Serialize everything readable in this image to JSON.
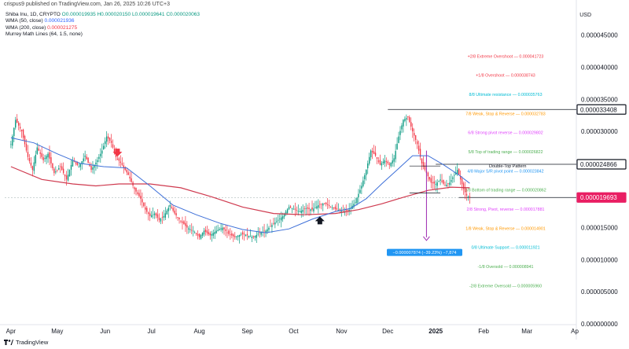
{
  "header": {
    "publisher_line": "crispus9 published on TradingView.com, Jan 26, 2025 10:26 UTC+3"
  },
  "legend": {
    "symbol": "Shiba Inu, 1D, CRYPTO",
    "ohlc": "O0.000019935 H0.000020150 L0.000019641 C0.000020063",
    "wma50_label": "WMA (50, close)",
    "wma50_value": "0.000021936",
    "wma200_label": "WMA (200, close)",
    "wma200_value": "0.000021275",
    "murrey_label": "Murrey Math Lines (64, 1.5, none)"
  },
  "currency": "USD",
  "footer": {
    "brand": "TradingView"
  },
  "colors": {
    "up": "#089981",
    "down": "#f23645",
    "wma50": "#3d6fd8",
    "wma200": "#cf3a4f",
    "price_badge": "#e91e63",
    "measure": "#9c27b0",
    "measure_box": "#2196f3"
  },
  "chart_data": {
    "type": "candlestick",
    "y_ticks": [
      "0.000045000",
      "0.000040000",
      "0.000035000",
      "0.000030000",
      "0.000015000",
      "0.000010000",
      "0.000005000",
      "0.000000000"
    ],
    "y_tick_values": [
      4.5e-05,
      4e-05,
      3.5e-05,
      3e-05,
      1.5e-05,
      1e-05,
      5e-06,
      0.0
    ],
    "ylim": [
      0.0,
      4.9e-05
    ],
    "x_ticks": [
      "Apr",
      "May",
      "Jun",
      "Jul",
      "Aug",
      "Sep",
      "Oct",
      "Nov",
      "Dec",
      "2025",
      "Feb",
      "Mar",
      "Ap"
    ],
    "x_tick_days": [
      0,
      30,
      61,
      91,
      122,
      153,
      183,
      214,
      244,
      275,
      306,
      334,
      365
    ],
    "xlim_days": [
      -4,
      366
    ],
    "price_labels": [
      {
        "text": "0.000033408",
        "value": 3.3408e-05,
        "style": "black"
      },
      {
        "text": "0.000024866",
        "value": 2.4866e-05,
        "style": "black"
      },
      {
        "text": "0.000019693",
        "value": 1.9693e-05,
        "style": "current"
      }
    ],
    "murrey_lines": [
      {
        "text": "+2/8 Extreme Overshoot — 0.000041723",
        "value": 4.1723e-05,
        "color": "#f23645"
      },
      {
        "text": "+1/8 Overshoot — 0.000038743",
        "value": 3.8743e-05,
        "color": "#f23645"
      },
      {
        "text": "8/8 Ultimate resistance — 0.000035763",
        "value": 3.5763e-05,
        "color": "#00bcd4"
      },
      {
        "text": "7/8 Weak, Stop & Reverse — 0.000032783",
        "value": 3.2783e-05,
        "color": "#ff9800"
      },
      {
        "text": "6/8 Strong pivot reverse — 0.000029802",
        "value": 2.9802e-05,
        "color": "#e040fb"
      },
      {
        "text": "5/8 Top of trading range — 0.000026822",
        "value": 2.6822e-05,
        "color": "#4caf50"
      },
      {
        "text": "4/8 Major S/R pivot point — 0.000023842",
        "value": 2.3842e-05,
        "color": "#2196f3"
      },
      {
        "text": "3/8 Bottom of trading range — 0.000020862",
        "value": 2.0862e-05,
        "color": "#4caf50"
      },
      {
        "text": "2/8 Strong, Pivot, reverse — 0.000017881",
        "value": 1.7881e-05,
        "color": "#e040fb"
      },
      {
        "text": "1/8 Weak, Stop & Reverse — 0.000014901",
        "value": 1.4901e-05,
        "color": "#ff9800"
      },
      {
        "text": "0/8 Ultimate Support — 0.000011921",
        "value": 1.1921e-05,
        "color": "#00bcd4"
      },
      {
        "text": "-1/8 Oversold — 0.000008941",
        "value": 8.941e-06,
        "color": "#4caf50"
      },
      {
        "text": "-2/8 Extreme Oversold — 0.000005960",
        "value": 5.96e-06,
        "color": "#4caf50"
      }
    ],
    "annotations": {
      "pattern_label": "Double-Top Pattern",
      "measure_label": "−0.000007874 (−39.23%) −7,874",
      "measure_from": 2.7e-05,
      "measure_to": 1.3e-05
    },
    "horizontal_lines": [
      {
        "value": 3.3408e-05,
        "x_from_day": 244,
        "x_to_day": 366
      },
      {
        "value": 2.4866e-05,
        "x_from_day": 275,
        "x_to_day": 366
      },
      {
        "value": 1.9693e-05,
        "x_from_day": 290,
        "x_to_day": 366
      }
    ],
    "price_points": [
      [
        0,
        2.8e-05
      ],
      [
        3,
        3.18e-05
      ],
      [
        7,
        3e-05
      ],
      [
        11,
        2.6e-05
      ],
      [
        14,
        2.4e-05
      ],
      [
        17,
        2.75e-05
      ],
      [
        21,
        2.55e-05
      ],
      [
        24,
        2.65e-05
      ],
      [
        28,
        2.35e-05
      ],
      [
        32,
        2.45e-05
      ],
      [
        36,
        2.25e-05
      ],
      [
        40,
        2.55e-05
      ],
      [
        44,
        2.45e-05
      ],
      [
        48,
        2.62e-05
      ],
      [
        52,
        2.4e-05
      ],
      [
        56,
        2.55e-05
      ],
      [
        59,
        2.7e-05
      ],
      [
        62,
        2.92e-05
      ],
      [
        65,
        2.82e-05
      ],
      [
        68,
        2.6e-05
      ],
      [
        72,
        2.48e-05
      ],
      [
        76,
        2.32e-05
      ],
      [
        80,
        2.1e-05
      ],
      [
        84,
        1.95e-05
      ],
      [
        87,
        1.78e-05
      ],
      [
        90,
        1.68e-05
      ],
      [
        93,
        1.72e-05
      ],
      [
        96,
        1.62e-05
      ],
      [
        99,
        1.68e-05
      ],
      [
        103,
        1.85e-05
      ],
      [
        106,
        1.72e-05
      ],
      [
        110,
        1.6e-05
      ],
      [
        114,
        1.5e-05
      ],
      [
        118,
        1.45e-05
      ],
      [
        122,
        1.35e-05
      ],
      [
        125,
        1.45e-05
      ],
      [
        129,
        1.38e-05
      ],
      [
        133,
        1.45e-05
      ],
      [
        137,
        1.5e-05
      ],
      [
        141,
        1.4e-05
      ],
      [
        145,
        1.35e-05
      ],
      [
        149,
        1.4e-05
      ],
      [
        153,
        1.38e-05
      ],
      [
        157,
        1.35e-05
      ],
      [
        161,
        1.42e-05
      ],
      [
        165,
        1.45e-05
      ],
      [
        168,
        1.52e-05
      ],
      [
        172,
        1.6e-05
      ],
      [
        176,
        1.68e-05
      ],
      [
        180,
        1.82e-05
      ],
      [
        184,
        1.78e-05
      ],
      [
        187,
        1.75e-05
      ],
      [
        191,
        1.8e-05
      ],
      [
        195,
        1.78e-05
      ],
      [
        199,
        1.85e-05
      ],
      [
        203,
        1.88e-05
      ],
      [
        207,
        1.82e-05
      ],
      [
        211,
        1.78e-05
      ],
      [
        215,
        1.75e-05
      ],
      [
        219,
        1.78e-05
      ],
      [
        223,
        1.9e-05
      ],
      [
        227,
        2.15e-05
      ],
      [
        230,
        2.4e-05
      ],
      [
        233,
        2.7e-05
      ],
      [
        236,
        2.62e-05
      ],
      [
        239,
        2.48e-05
      ],
      [
        242,
        2.55e-05
      ],
      [
        245,
        2.48e-05
      ],
      [
        248,
        2.58e-05
      ],
      [
        251,
        2.92e-05
      ],
      [
        254,
        3.18e-05
      ],
      [
        257,
        3.22e-05
      ],
      [
        260,
        3e-05
      ],
      [
        263,
        2.8e-05
      ],
      [
        266,
        2.5e-05
      ],
      [
        269,
        2.35e-05
      ],
      [
        272,
        2.2e-05
      ],
      [
        275,
        2.18e-05
      ],
      [
        278,
        2.25e-05
      ],
      [
        281,
        2.15e-05
      ],
      [
        284,
        2.2e-05
      ],
      [
        287,
        2.32e-05
      ],
      [
        289,
        2.4e-05
      ],
      [
        291,
        2.25e-05
      ],
      [
        293,
        2.1e-05
      ],
      [
        295,
        2e-05
      ],
      [
        297,
        1.97e-05
      ]
    ],
    "wma50_points": [
      [
        0,
        2.9e-05
      ],
      [
        15,
        2.82e-05
      ],
      [
        30,
        2.65e-05
      ],
      [
        45,
        2.5e-05
      ],
      [
        60,
        2.45e-05
      ],
      [
        75,
        2.43e-05
      ],
      [
        90,
        2.15e-05
      ],
      [
        105,
        1.85e-05
      ],
      [
        120,
        1.7e-05
      ],
      [
        135,
        1.57e-05
      ],
      [
        150,
        1.47e-05
      ],
      [
        165,
        1.42e-05
      ],
      [
        180,
        1.48e-05
      ],
      [
        195,
        1.63e-05
      ],
      [
        210,
        1.75e-05
      ],
      [
        220,
        1.8e-05
      ],
      [
        230,
        1.95e-05
      ],
      [
        240,
        2.18e-05
      ],
      [
        250,
        2.4e-05
      ],
      [
        260,
        2.62e-05
      ],
      [
        270,
        2.62e-05
      ],
      [
        280,
        2.48e-05
      ],
      [
        290,
        2.32e-05
      ],
      [
        297,
        2.19e-05
      ]
    ],
    "wma200_points": [
      [
        0,
        2.45e-05
      ],
      [
        20,
        2.25e-05
      ],
      [
        40,
        2.18e-05
      ],
      [
        55,
        2.15e-05
      ],
      [
        70,
        2.18e-05
      ],
      [
        90,
        2.18e-05
      ],
      [
        110,
        2.12e-05
      ],
      [
        130,
        1.98e-05
      ],
      [
        150,
        1.82e-05
      ],
      [
        170,
        1.72e-05
      ],
      [
        190,
        1.7e-05
      ],
      [
        210,
        1.72e-05
      ],
      [
        225,
        1.78e-05
      ],
      [
        240,
        1.87e-05
      ],
      [
        255,
        1.98e-05
      ],
      [
        270,
        2.08e-05
      ],
      [
        285,
        2.13e-05
      ],
      [
        297,
        2.12e-05
      ]
    ],
    "markers": [
      {
        "type": "arrow-down",
        "day": 69,
        "value": 2.62e-05,
        "color": "#f23645"
      },
      {
        "type": "arrow-up",
        "day": 200,
        "value": 1.6e-05,
        "color": "#131722"
      }
    ]
  }
}
